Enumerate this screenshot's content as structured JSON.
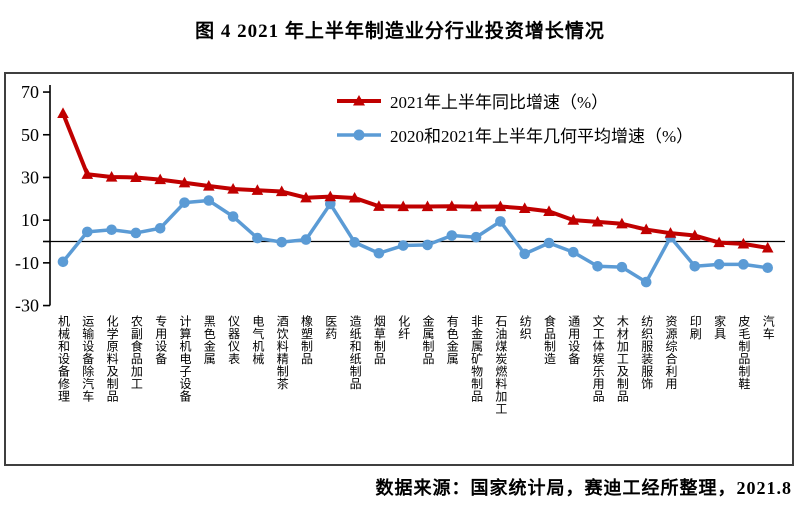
{
  "title": "图 4  2021 年上半年制造业分行业投资增长情况",
  "footer": "数据来源：国家统计局，赛迪工经所整理，2021.8",
  "colors": {
    "series_red": "#c00000",
    "series_blue": "#5b9bd5",
    "axis": "#000000",
    "frame": "#3f3f3f"
  },
  "chart_data": {
    "type": "line",
    "title": "图 4  2021 年上半年制造业分行业投资增长情况",
    "xlabel": "",
    "ylabel": "",
    "ylim": [
      -30,
      70
    ],
    "y_ticks": [
      70,
      50,
      30,
      10,
      -10,
      -30
    ],
    "grid": false,
    "zero_line": true,
    "legend_position": "top-center-inside",
    "categories": [
      "机械和设备修理",
      "运输设备除汽车",
      "化学原料及制品",
      "农副食品加工",
      "专用设备",
      "计算机电子设备",
      "黑色金属",
      "仪器仪表",
      "电气机械",
      "酒饮料精制茶",
      "橡塑制品",
      "医药",
      "造纸和纸制品",
      "烟草制品",
      "化纤",
      "金属制品",
      "有色金属",
      "非金属矿物制品",
      "石油煤炭燃料加工",
      "纺织",
      "食品制造",
      "通用设备",
      "文工体娱乐用品",
      "木材加工及制品",
      "纺织服装服饰",
      "资源综合利用",
      "印刷",
      "家具",
      "皮毛制品制鞋",
      "汽车"
    ],
    "series": [
      {
        "name": "2021年上半年同比增速（%）",
        "color": "#c00000",
        "marker": "triangle",
        "values": [
          60,
          31.5,
          30.2,
          30,
          29,
          27.5,
          26,
          24.6,
          24,
          23.4,
          20.5,
          21,
          20.4,
          16.5,
          16.4,
          16.4,
          16.5,
          16.3,
          16.4,
          15.5,
          14.1,
          10,
          9.2,
          8.3,
          5.6,
          3.9,
          2.8,
          -0.5,
          -1.1,
          -3
        ]
      },
      {
        "name": "2020和2021年上半年几何平均增速（%）",
        "color": "#5b9bd5",
        "marker": "circle",
        "values": [
          -9.5,
          4.5,
          5.5,
          4,
          6.2,
          18.2,
          19.2,
          11.7,
          1.6,
          -0.3,
          0.9,
          17.6,
          -0.4,
          -5.5,
          -1.9,
          -1.6,
          2.8,
          2,
          9.4,
          -5.8,
          -0.7,
          -5,
          -11.6,
          -12,
          -19,
          2,
          -11.6,
          -10.7,
          -10.7,
          -12.3
        ]
      }
    ]
  }
}
